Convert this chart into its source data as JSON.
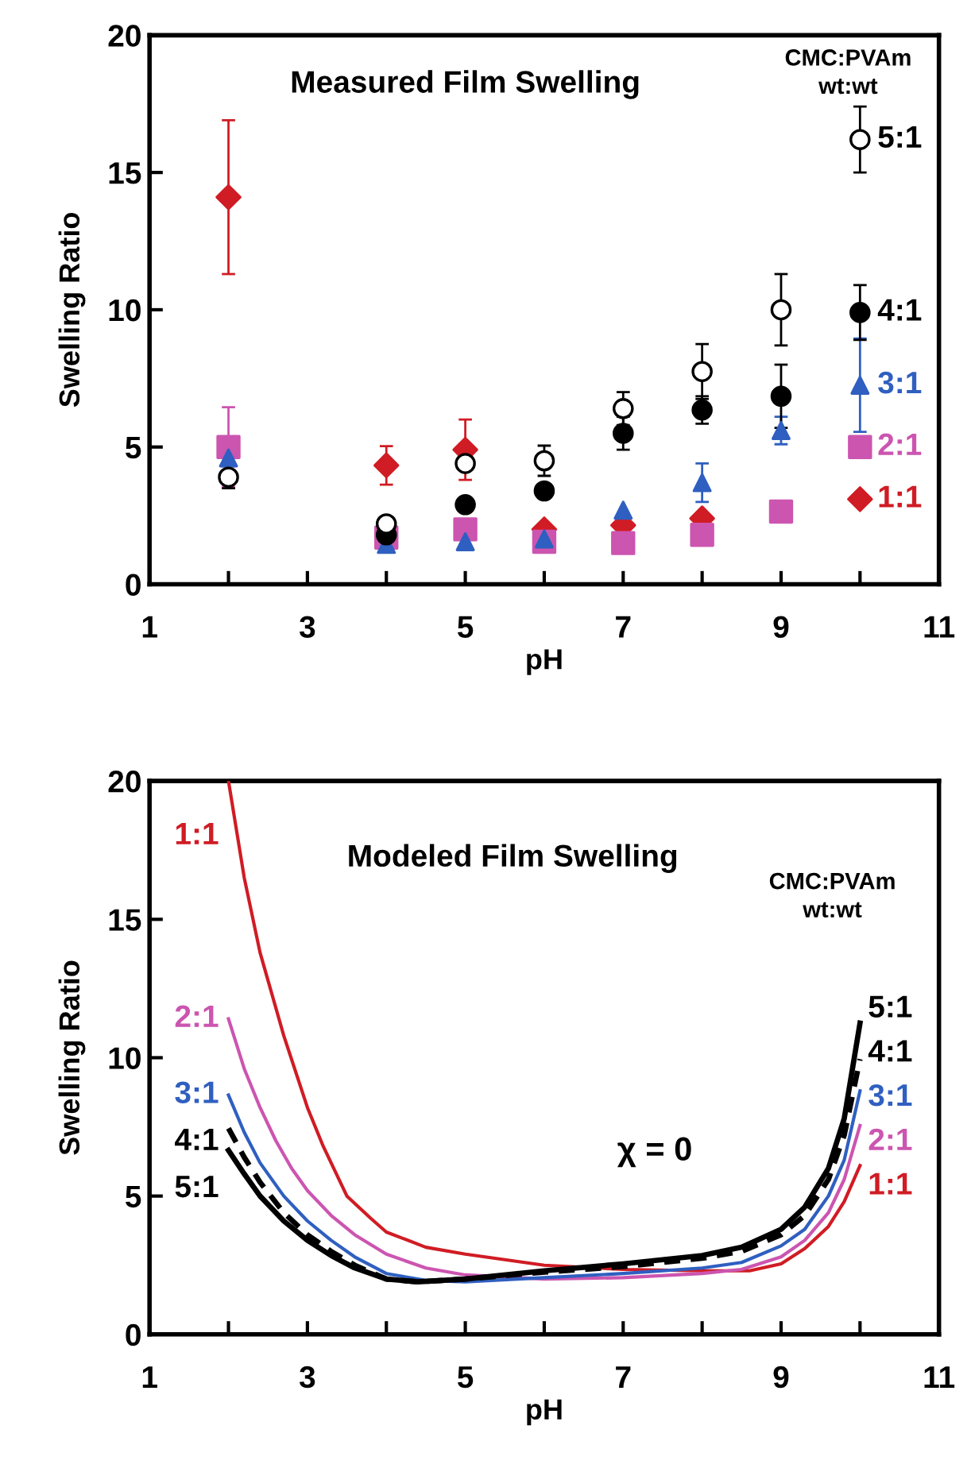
{
  "chart_data": [
    {
      "type": "scatter",
      "title": "Measured Film Swelling",
      "legend_title": "CMC:PVAm\nwt:wt",
      "xlabel": "pH",
      "ylabel": "Swelling Ratio",
      "x": [
        2,
        4,
        5,
        6,
        7,
        8,
        9,
        10
      ],
      "series": [
        {
          "name": "1:1",
          "color": "#d01c24",
          "marker": "diamond",
          "values": [
            14.1,
            4.33,
            4.9,
            2.0,
            2.15,
            2.4,
            null,
            3.1
          ],
          "errors": [
            2.8,
            0.7,
            1.1,
            null,
            null,
            null,
            null,
            null
          ]
        },
        {
          "name": "2:1",
          "color": "#cc55b0",
          "marker": "square",
          "values": [
            5.0,
            1.7,
            2.0,
            1.55,
            1.5,
            1.8,
            2.65,
            5.0
          ],
          "errors": [
            1.45,
            null,
            null,
            null,
            null,
            null,
            null,
            null
          ]
        },
        {
          "name": "3:1",
          "color": "#2f5fc0",
          "marker": "triangle",
          "values": [
            4.6,
            1.45,
            1.55,
            1.65,
            2.7,
            3.7,
            5.6,
            7.25
          ],
          "errors": [
            null,
            null,
            null,
            null,
            null,
            0.7,
            0.5,
            1.7
          ]
        },
        {
          "name": "4:1",
          "color": "#000000",
          "marker": "circle",
          "values": [
            null,
            1.8,
            2.9,
            3.4,
            5.5,
            6.35,
            6.85,
            9.9
          ],
          "errors": [
            null,
            null,
            null,
            null,
            0.6,
            0.5,
            1.15,
            1.0
          ]
        },
        {
          "name": "5:1",
          "color": "#ffffff",
          "marker": "circle",
          "values": [
            3.9,
            2.2,
            4.4,
            4.5,
            6.4,
            7.75,
            10.0,
            16.2
          ],
          "errors": [
            0.4,
            null,
            null,
            0.55,
            0.6,
            1.0,
            1.3,
            1.2
          ]
        }
      ],
      "xlim": [
        1,
        11
      ],
      "xticks": [
        1,
        {
          "value": 2,
          "label": null
        },
        3,
        {
          "value": 4,
          "label": null
        },
        5,
        {
          "value": 6,
          "label": null
        },
        7,
        {
          "value": 8,
          "label": null
        },
        9,
        {
          "value": 10,
          "label": null
        },
        11
      ],
      "ylim": [
        0,
        20
      ],
      "yticks": [
        0,
        5,
        10,
        15,
        20
      ],
      "grid": false,
      "legend": false
    },
    {
      "type": "line",
      "title": "Modeled Film Swelling",
      "legend_title": "CMC:PVAm\nwt:wt",
      "xlabel": "pH",
      "ylabel": "Swelling Ratio",
      "annotations": [
        "χ = 0"
      ],
      "series": [
        {
          "name": "1:1",
          "color": "#d01c24",
          "line_style": "solid",
          "x": [
            2.0,
            2.2,
            2.4,
            2.7,
            3.0,
            3.2,
            3.5,
            3.8,
            4.0,
            4.5,
            5.0,
            6.0,
            7.0,
            8.0,
            8.6,
            9.0,
            9.3,
            9.6,
            9.8,
            10.0
          ],
          "values": [
            20,
            16.5,
            13.8,
            10.8,
            8.2,
            6.8,
            5.0,
            4.2,
            3.7,
            3.15,
            2.9,
            2.5,
            2.35,
            2.3,
            2.3,
            2.55,
            3.1,
            3.9,
            4.8,
            6.1
          ]
        },
        {
          "name": "2:1",
          "color": "#cc55b0",
          "line_style": "solid",
          "x": [
            2.0,
            2.2,
            2.4,
            2.6,
            2.8,
            3.0,
            3.3,
            3.6,
            4.0,
            4.5,
            5.0,
            6.0,
            7.0,
            8.0,
            8.5,
            9.0,
            9.3,
            9.6,
            9.8,
            10.0
          ],
          "values": [
            11.4,
            9.6,
            8.2,
            7.0,
            6.0,
            5.2,
            4.3,
            3.6,
            2.9,
            2.4,
            2.15,
            2.0,
            2.05,
            2.2,
            2.35,
            2.8,
            3.4,
            4.4,
            5.6,
            7.55
          ]
        },
        {
          "name": "3:1",
          "color": "#2f5fc0",
          "line_style": "solid",
          "x": [
            2.0,
            2.2,
            2.4,
            2.7,
            3.0,
            3.3,
            3.6,
            4.0,
            4.5,
            5.0,
            6.0,
            7.0,
            8.0,
            8.5,
            9.0,
            9.3,
            9.6,
            9.8,
            10.0
          ],
          "values": [
            8.65,
            7.3,
            6.2,
            5.0,
            4.1,
            3.4,
            2.8,
            2.2,
            1.95,
            1.9,
            2.05,
            2.2,
            2.4,
            2.6,
            3.2,
            3.8,
            5.0,
            6.3,
            8.8
          ]
        },
        {
          "name": "4:1",
          "color": "#000000",
          "line_style": "dashed",
          "x": [
            2.0,
            2.2,
            2.4,
            2.7,
            3.0,
            3.3,
            3.6,
            4.0,
            4.4,
            5.0,
            6.0,
            7.0,
            8.0,
            8.5,
            9.0,
            9.3,
            9.6,
            9.8,
            10.0
          ],
          "values": [
            7.45,
            6.4,
            5.5,
            4.4,
            3.6,
            3.0,
            2.5,
            2.0,
            1.9,
            2.0,
            2.25,
            2.45,
            2.75,
            3.0,
            3.6,
            4.3,
            5.6,
            7.2,
            9.95
          ]
        },
        {
          "name": "5:1",
          "color": "#000000",
          "line_style": "solid",
          "x": [
            2.0,
            2.2,
            2.4,
            2.7,
            3.0,
            3.3,
            3.6,
            4.0,
            4.4,
            5.0,
            6.0,
            7.0,
            8.0,
            8.5,
            9.0,
            9.3,
            9.6,
            9.8,
            10.0
          ],
          "values": [
            6.65,
            5.8,
            5.0,
            4.1,
            3.4,
            2.85,
            2.4,
            2.0,
            1.9,
            2.0,
            2.3,
            2.55,
            2.85,
            3.15,
            3.8,
            4.6,
            6.0,
            7.8,
            11.25
          ]
        }
      ],
      "xlim": [
        1,
        11
      ],
      "xticks": [
        1,
        {
          "value": 2,
          "label": null
        },
        3,
        {
          "value": 4,
          "label": null
        },
        5,
        {
          "value": 6,
          "label": null
        },
        7,
        {
          "value": 8,
          "label": null
        },
        9,
        {
          "value": 10,
          "label": null
        },
        11
      ],
      "ylim": [
        0,
        20
      ],
      "yticks": [
        0,
        5,
        10,
        15,
        20
      ],
      "grid": false,
      "legend": false,
      "marker": "none"
    }
  ]
}
